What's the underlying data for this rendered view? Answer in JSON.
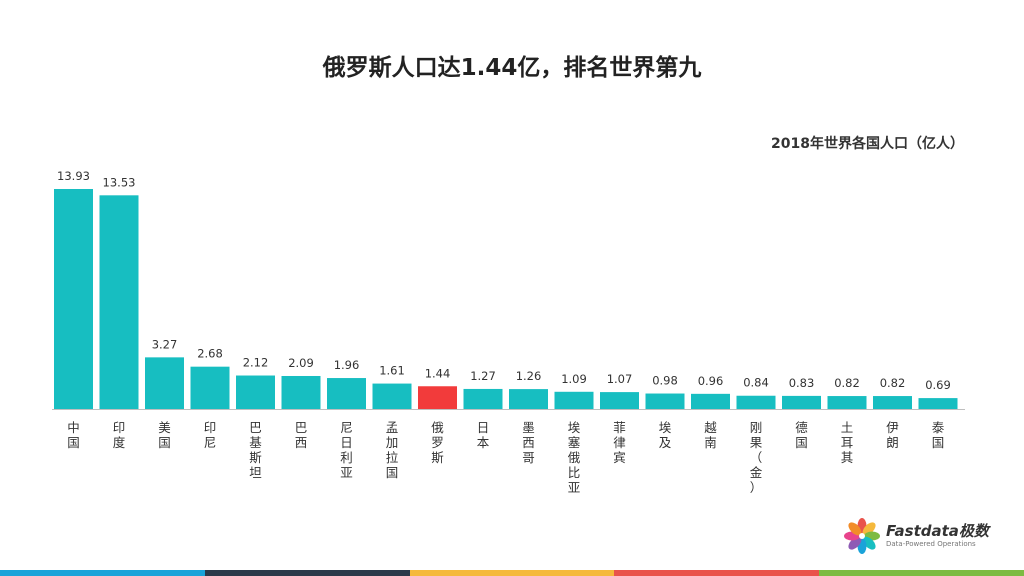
{
  "chart_data": {
    "type": "bar",
    "title": "俄罗斯人口达1.44亿，排名世界第九",
    "subtitle": "2018年世界各国人口（亿人）",
    "categories": [
      "中国",
      "印度",
      "美国",
      "印尼",
      "巴基斯坦",
      "巴西",
      "尼日利亚",
      "孟加拉国",
      "俄罗斯",
      "日本",
      "墨西哥",
      "埃塞俄比亚",
      "菲律宾",
      "埃及",
      "越南",
      "刚果（金）",
      "德国",
      "土耳其",
      "伊朗",
      "泰国"
    ],
    "value_labels": [
      "13.93",
      "13.53",
      "3.27",
      "2.68",
      "2.12",
      "2.09",
      "1.96",
      "1.61",
      "1.44",
      "1.27",
      "1.26",
      "1.09",
      "1.07",
      "0.98",
      "0.96",
      "0.84",
      "0.83",
      "0.82",
      "0.82",
      "0.69"
    ],
    "values": [
      13.93,
      13.53,
      3.27,
      2.68,
      2.12,
      2.09,
      1.96,
      1.61,
      1.44,
      1.27,
      1.26,
      1.09,
      1.07,
      0.98,
      0.96,
      0.84,
      0.83,
      0.82,
      0.82,
      0.69
    ],
    "highlight_category": "俄罗斯",
    "ylim": [
      0,
      14.5
    ],
    "grid": false,
    "colors": {
      "bar": "#17BEC1",
      "highlight": "#F23B3B",
      "axis": "#BFBFBF"
    }
  },
  "logo": {
    "name": "Fastdata极数",
    "tagline": "Data-Powered Operations"
  },
  "footer_colors": [
    "#1AA3D9",
    "#2B3A4A",
    "#F5B93C",
    "#E9534B",
    "#7DBB42"
  ]
}
